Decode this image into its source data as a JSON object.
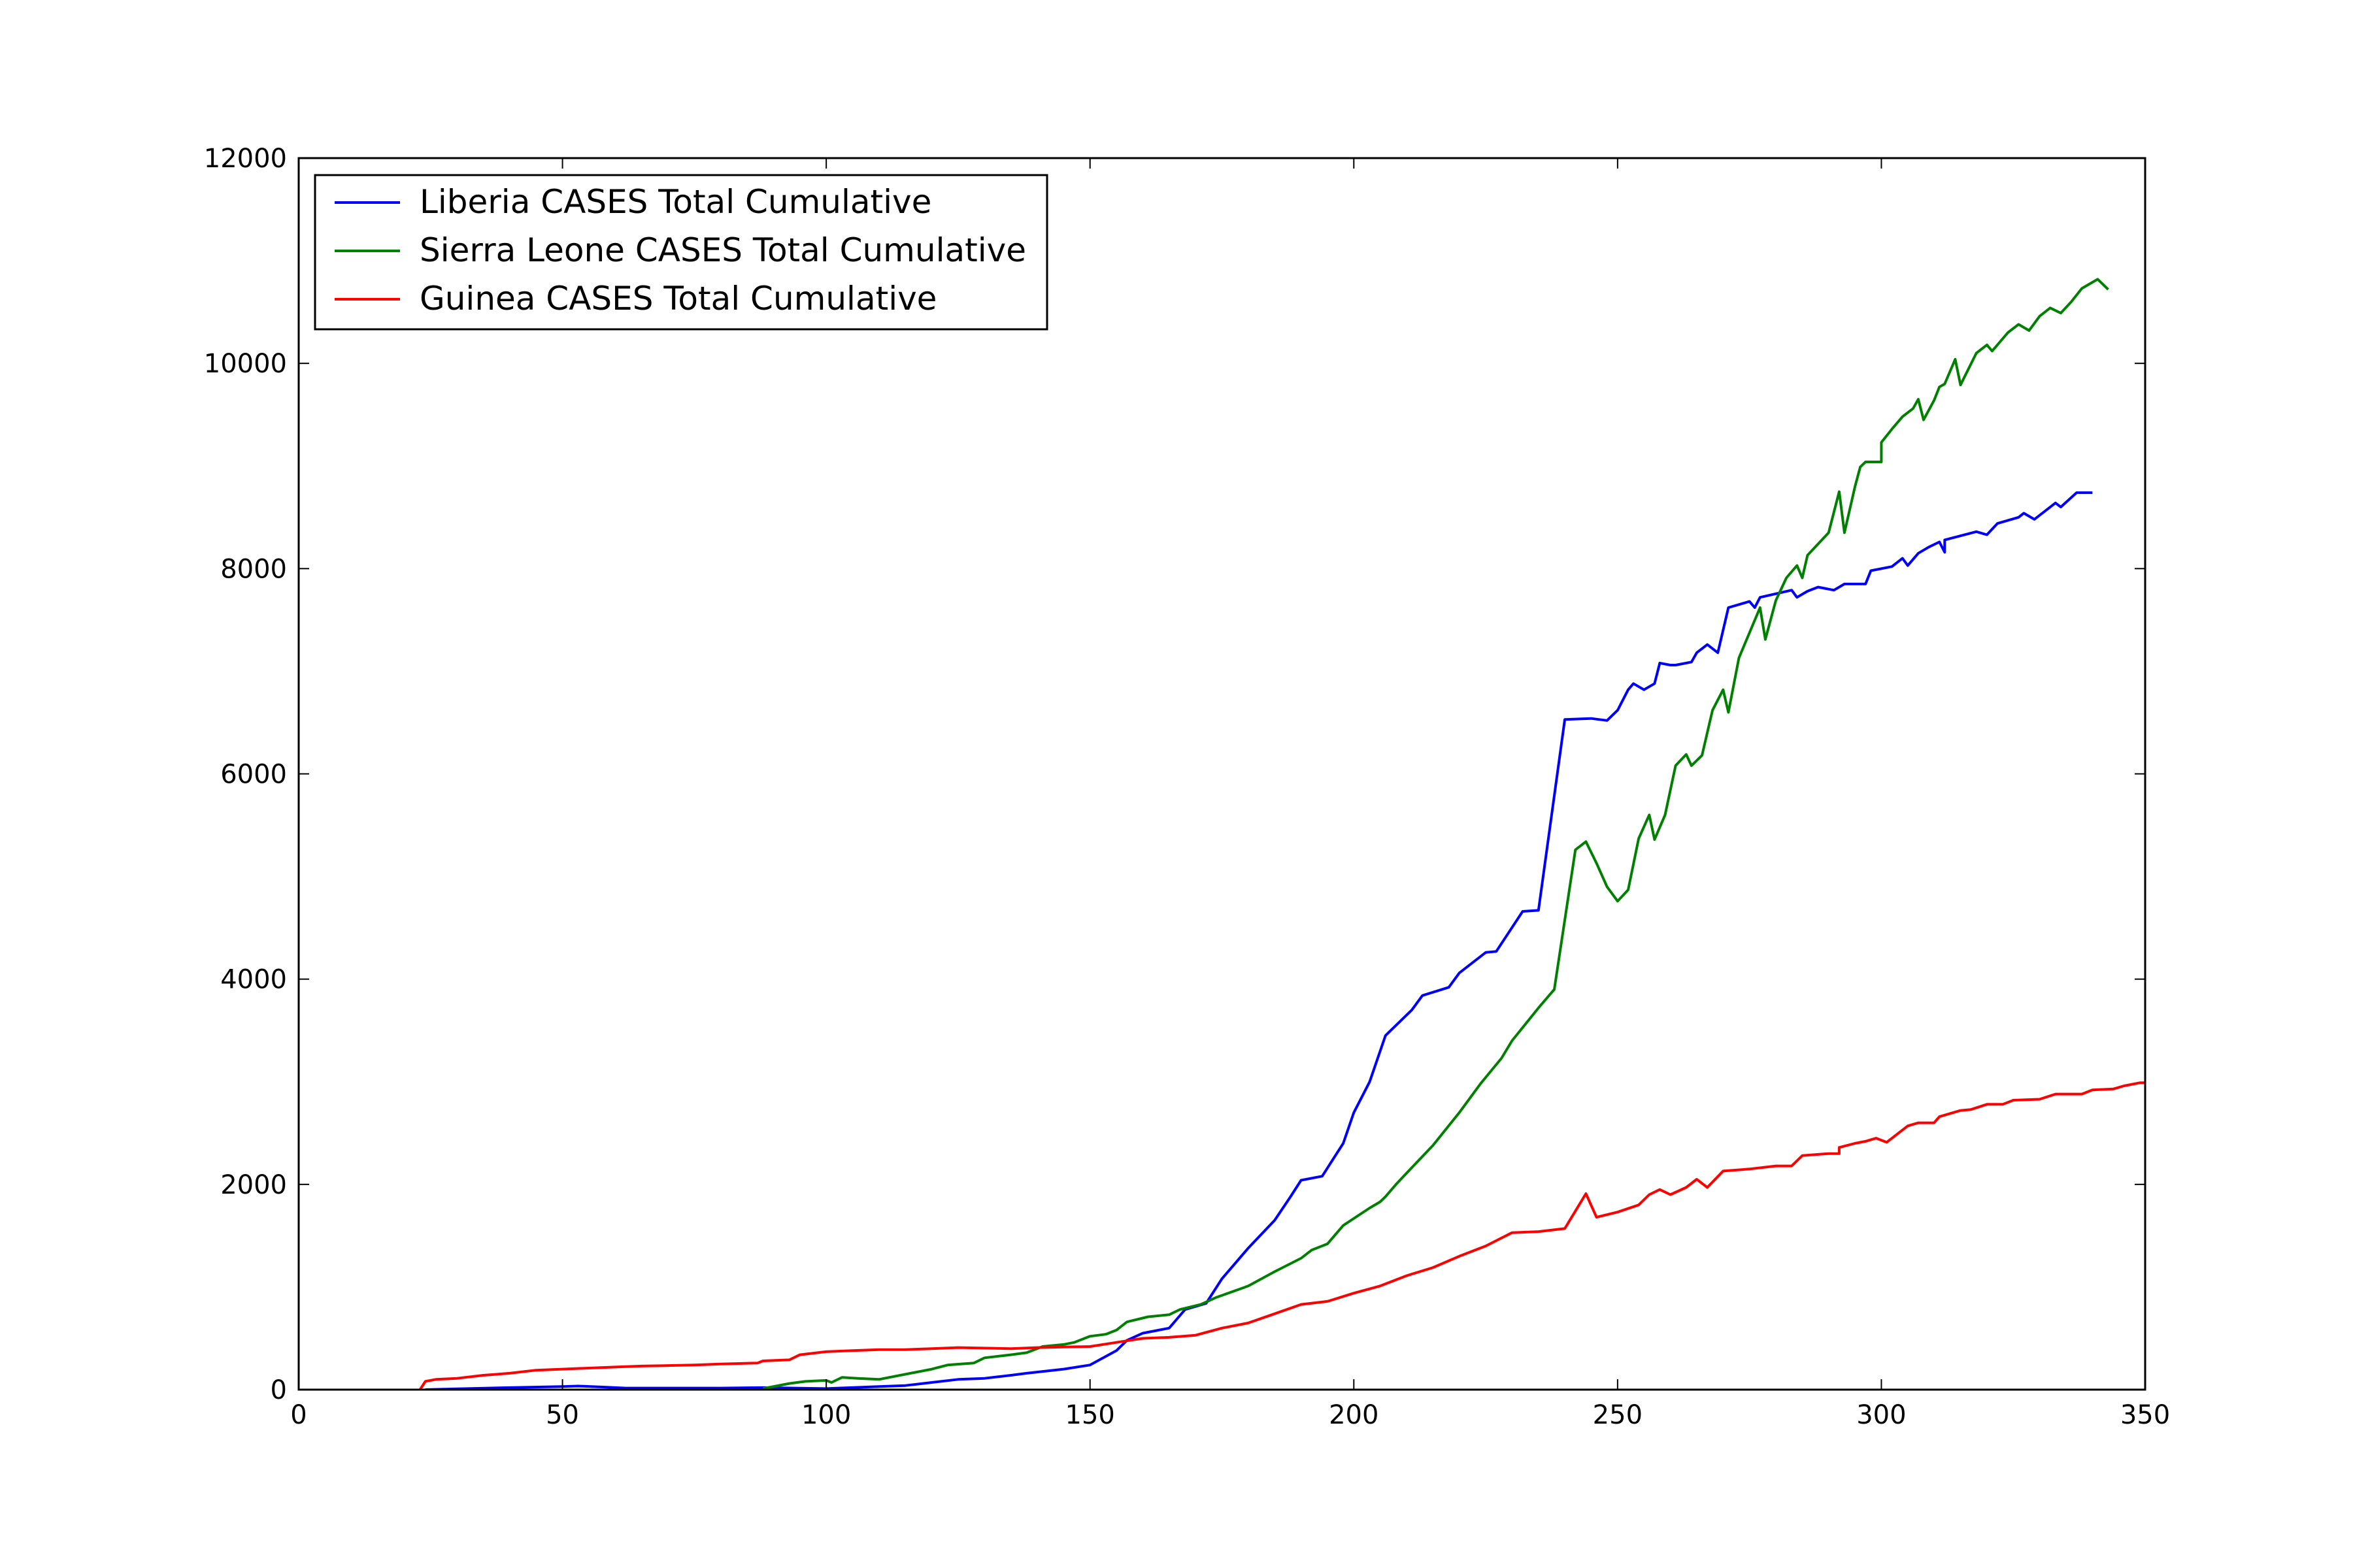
{
  "chart_data": {
    "type": "line",
    "title": "",
    "xlabel": "",
    "ylabel": "",
    "xlim": [
      0,
      350
    ],
    "ylim": [
      0,
      12000
    ],
    "xticks": [
      0,
      50,
      100,
      150,
      200,
      250,
      300,
      350
    ],
    "yticks": [
      0,
      2000,
      4000,
      6000,
      8000,
      10000,
      12000
    ],
    "grid": false,
    "legend_position": "top-left",
    "series": [
      {
        "name": "Liberia CASES Total Cumulative",
        "color": "#0000ff",
        "points": [
          [
            24,
            0
          ],
          [
            30,
            8
          ],
          [
            40,
            20
          ],
          [
            50,
            30
          ],
          [
            53,
            35
          ],
          [
            58,
            25
          ],
          [
            62,
            15
          ],
          [
            80,
            15
          ],
          [
            88,
            20
          ],
          [
            100,
            10
          ],
          [
            110,
            30
          ],
          [
            115,
            40
          ],
          [
            120,
            70
          ],
          [
            125,
            100
          ],
          [
            130,
            110
          ],
          [
            135,
            140
          ],
          [
            138,
            160
          ],
          [
            145,
            200
          ],
          [
            150,
            240
          ],
          [
            155,
            380
          ],
          [
            157,
            480
          ],
          [
            160,
            550
          ],
          [
            165,
            600
          ],
          [
            168,
            780
          ],
          [
            172,
            840
          ],
          [
            175,
            1080
          ],
          [
            180,
            1380
          ],
          [
            185,
            1650
          ],
          [
            188,
            1880
          ],
          [
            190,
            2040
          ],
          [
            194,
            2080
          ],
          [
            198,
            2400
          ],
          [
            200,
            2700
          ],
          [
            203,
            3000
          ],
          [
            206,
            3450
          ],
          [
            211,
            3700
          ],
          [
            213,
            3840
          ],
          [
            218,
            3920
          ],
          [
            220,
            4060
          ],
          [
            225,
            4260
          ],
          [
            227,
            4270
          ],
          [
            232,
            4660
          ],
          [
            235,
            4670
          ],
          [
            240,
            6530
          ],
          [
            245,
            6540
          ],
          [
            248,
            6520
          ],
          [
            250,
            6620
          ],
          [
            252,
            6820
          ],
          [
            253,
            6880
          ],
          [
            255,
            6820
          ],
          [
            257,
            6880
          ],
          [
            258,
            7080
          ],
          [
            260,
            7060
          ],
          [
            261,
            7060
          ],
          [
            264,
            7090
          ],
          [
            265,
            7180
          ],
          [
            267,
            7260
          ],
          [
            269,
            7180
          ],
          [
            271,
            7620
          ],
          [
            275,
            7680
          ],
          [
            276,
            7620
          ],
          [
            277,
            7720
          ],
          [
            283,
            7790
          ],
          [
            284,
            7720
          ],
          [
            286,
            7780
          ],
          [
            288,
            7820
          ],
          [
            291,
            7790
          ],
          [
            293,
            7850
          ],
          [
            297,
            7850
          ],
          [
            298,
            7980
          ],
          [
            302,
            8020
          ],
          [
            304,
            8100
          ],
          [
            305,
            8030
          ],
          [
            307,
            8150
          ],
          [
            309,
            8210
          ],
          [
            311,
            8260
          ],
          [
            312,
            8160
          ],
          [
            312,
            8280
          ],
          [
            318,
            8360
          ],
          [
            320,
            8330
          ],
          [
            322,
            8440
          ],
          [
            326,
            8500
          ],
          [
            327,
            8540
          ],
          [
            329,
            8480
          ],
          [
            331,
            8560
          ],
          [
            333,
            8640
          ],
          [
            334,
            8600
          ],
          [
            337,
            8740
          ],
          [
            340,
            8740
          ]
        ]
      },
      {
        "name": "Sierra Leone CASES Total Cumulative",
        "color": "#008000",
        "points": [
          [
            88,
            10
          ],
          [
            93,
            60
          ],
          [
            96,
            80
          ],
          [
            100,
            90
          ],
          [
            101,
            70
          ],
          [
            103,
            120
          ],
          [
            106,
            110
          ],
          [
            110,
            100
          ],
          [
            120,
            200
          ],
          [
            123,
            240
          ],
          [
            128,
            260
          ],
          [
            130,
            310
          ],
          [
            135,
            340
          ],
          [
            138,
            360
          ],
          [
            141,
            420
          ],
          [
            145,
            440
          ],
          [
            147,
            460
          ],
          [
            150,
            520
          ],
          [
            153,
            540
          ],
          [
            155,
            580
          ],
          [
            157,
            660
          ],
          [
            161,
            710
          ],
          [
            165,
            730
          ],
          [
            167,
            780
          ],
          [
            171,
            830
          ],
          [
            174,
            900
          ],
          [
            180,
            1010
          ],
          [
            185,
            1150
          ],
          [
            190,
            1280
          ],
          [
            192,
            1360
          ],
          [
            195,
            1420
          ],
          [
            198,
            1600
          ],
          [
            203,
            1770
          ],
          [
            205,
            1830
          ],
          [
            206,
            1880
          ],
          [
            208,
            2000
          ],
          [
            210,
            2110
          ],
          [
            215,
            2380
          ],
          [
            220,
            2700
          ],
          [
            224,
            2980
          ],
          [
            228,
            3230
          ],
          [
            230,
            3400
          ],
          [
            235,
            3720
          ],
          [
            238,
            3900
          ],
          [
            242,
            5260
          ],
          [
            244,
            5340
          ],
          [
            246,
            5130
          ],
          [
            248,
            4900
          ],
          [
            250,
            4760
          ],
          [
            252,
            4870
          ],
          [
            254,
            5370
          ],
          [
            256,
            5600
          ],
          [
            257,
            5360
          ],
          [
            259,
            5600
          ],
          [
            261,
            6080
          ],
          [
            263,
            6190
          ],
          [
            264,
            6080
          ],
          [
            266,
            6180
          ],
          [
            268,
            6620
          ],
          [
            270,
            6820
          ],
          [
            271,
            6600
          ],
          [
            273,
            7130
          ],
          [
            277,
            7620
          ],
          [
            278,
            7310
          ],
          [
            280,
            7690
          ],
          [
            282,
            7910
          ],
          [
            284,
            8030
          ],
          [
            285,
            7910
          ],
          [
            286,
            8130
          ],
          [
            290,
            8350
          ],
          [
            292,
            8750
          ],
          [
            293,
            8350
          ],
          [
            295,
            8800
          ],
          [
            296,
            8990
          ],
          [
            297,
            9040
          ],
          [
            300,
            9040
          ],
          [
            300,
            9230
          ],
          [
            302,
            9360
          ],
          [
            304,
            9480
          ],
          [
            306,
            9560
          ],
          [
            307,
            9650
          ],
          [
            308,
            9450
          ],
          [
            310,
            9640
          ],
          [
            311,
            9770
          ],
          [
            312,
            9800
          ],
          [
            314,
            10040
          ],
          [
            315,
            9790
          ],
          [
            318,
            10100
          ],
          [
            320,
            10180
          ],
          [
            321,
            10120
          ],
          [
            324,
            10300
          ],
          [
            326,
            10380
          ],
          [
            328,
            10320
          ],
          [
            330,
            10460
          ],
          [
            332,
            10540
          ],
          [
            334,
            10490
          ],
          [
            336,
            10600
          ],
          [
            338,
            10730
          ],
          [
            341,
            10820
          ],
          [
            343,
            10720
          ]
        ]
      },
      {
        "name": "Guinea CASES Total Cumulative",
        "color": "#ff0000",
        "points": [
          [
            23,
            0
          ],
          [
            24,
            80
          ],
          [
            26,
            100
          ],
          [
            30,
            110
          ],
          [
            35,
            140
          ],
          [
            40,
            160
          ],
          [
            45,
            190
          ],
          [
            50,
            200
          ],
          [
            55,
            210
          ],
          [
            60,
            220
          ],
          [
            65,
            230
          ],
          [
            70,
            235
          ],
          [
            75,
            240
          ],
          [
            80,
            250
          ],
          [
            87,
            260
          ],
          [
            88,
            280
          ],
          [
            93,
            290
          ],
          [
            95,
            340
          ],
          [
            100,
            370
          ],
          [
            105,
            380
          ],
          [
            110,
            390
          ],
          [
            115,
            390
          ],
          [
            120,
            400
          ],
          [
            125,
            410
          ],
          [
            135,
            400
          ],
          [
            140,
            410
          ],
          [
            150,
            420
          ],
          [
            155,
            460
          ],
          [
            160,
            500
          ],
          [
            165,
            510
          ],
          [
            170,
            530
          ],
          [
            175,
            600
          ],
          [
            180,
            650
          ],
          [
            185,
            740
          ],
          [
            190,
            830
          ],
          [
            195,
            860
          ],
          [
            200,
            940
          ],
          [
            205,
            1010
          ],
          [
            210,
            1110
          ],
          [
            215,
            1190
          ],
          [
            220,
            1300
          ],
          [
            225,
            1400
          ],
          [
            230,
            1530
          ],
          [
            235,
            1540
          ],
          [
            240,
            1570
          ],
          [
            244,
            1910
          ],
          [
            246,
            1680
          ],
          [
            250,
            1730
          ],
          [
            254,
            1800
          ],
          [
            256,
            1900
          ],
          [
            258,
            1950
          ],
          [
            260,
            1900
          ],
          [
            263,
            1970
          ],
          [
            265,
            2050
          ],
          [
            267,
            1970
          ],
          [
            270,
            2130
          ],
          [
            275,
            2150
          ],
          [
            280,
            2180
          ],
          [
            283,
            2180
          ],
          [
            285,
            2280
          ],
          [
            290,
            2300
          ],
          [
            292,
            2300
          ],
          [
            292,
            2360
          ],
          [
            295,
            2400
          ],
          [
            297,
            2420
          ],
          [
            299,
            2450
          ],
          [
            301,
            2410
          ],
          [
            305,
            2570
          ],
          [
            307,
            2600
          ],
          [
            310,
            2600
          ],
          [
            311,
            2660
          ],
          [
            315,
            2720
          ],
          [
            317,
            2730
          ],
          [
            320,
            2780
          ],
          [
            323,
            2780
          ],
          [
            325,
            2820
          ],
          [
            330,
            2830
          ],
          [
            333,
            2880
          ],
          [
            338,
            2880
          ],
          [
            340,
            2920
          ],
          [
            344,
            2930
          ],
          [
            346,
            2960
          ],
          [
            349,
            2990
          ],
          [
            352,
            2990
          ],
          [
            353,
            2970
          ]
        ]
      }
    ]
  }
}
